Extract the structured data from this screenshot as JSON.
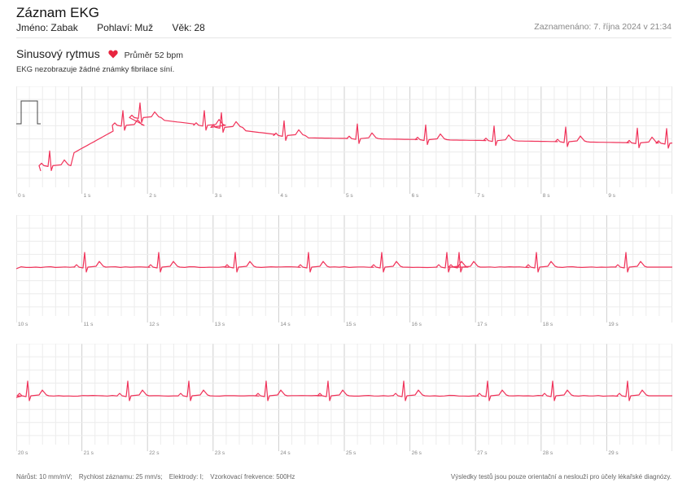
{
  "header": {
    "title": "Záznam EKG",
    "name_label": "Jméno:",
    "name_value": "Zabak",
    "sex_label": "Pohlaví:",
    "sex_value": "Muž",
    "age_label": "Věk:",
    "age_value": "28",
    "recorded": "Zaznamenáno: 7. října 2024 v 21:34"
  },
  "summary": {
    "rhythm": "Sinusový rytmus",
    "heart_icon": "heart-icon",
    "average": "Průměr 52 bpm",
    "note": "EKG nezobrazuje žádné známky fibrilace síní."
  },
  "strips": [
    {
      "labels": [
        "0 s",
        "1 s",
        "2 s",
        "3 s",
        "4 s",
        "5 s",
        "6 s",
        "7 s",
        "8 s",
        "9 s"
      ]
    },
    {
      "labels": [
        "10 s",
        "11 s",
        "12 s",
        "13 s",
        "14 s",
        "15 s",
        "16 s",
        "17 s",
        "18 s",
        "19 s"
      ]
    },
    {
      "labels": [
        "20 s",
        "21 s",
        "22 s",
        "23 s",
        "24 s",
        "25 s",
        "26 s",
        "27 s",
        "28 s",
        "29 s"
      ]
    }
  ],
  "footer": {
    "gain": "Nárůst: 10 mm/mV;",
    "speed": "Rychlost záznamu: 25 mm/s;",
    "leads": "Elektrody: I;",
    "sampling": "Vzorkovací frekvence: 500Hz",
    "disclaimer": "Výsledky testů jsou pouze orientační a neslouží pro účely lékařské diagnózy."
  },
  "colors": {
    "trace": "#f0335a",
    "grid_minor": "#ececec",
    "grid_major": "#cfcfcf",
    "heart": "#e8253f"
  }
}
